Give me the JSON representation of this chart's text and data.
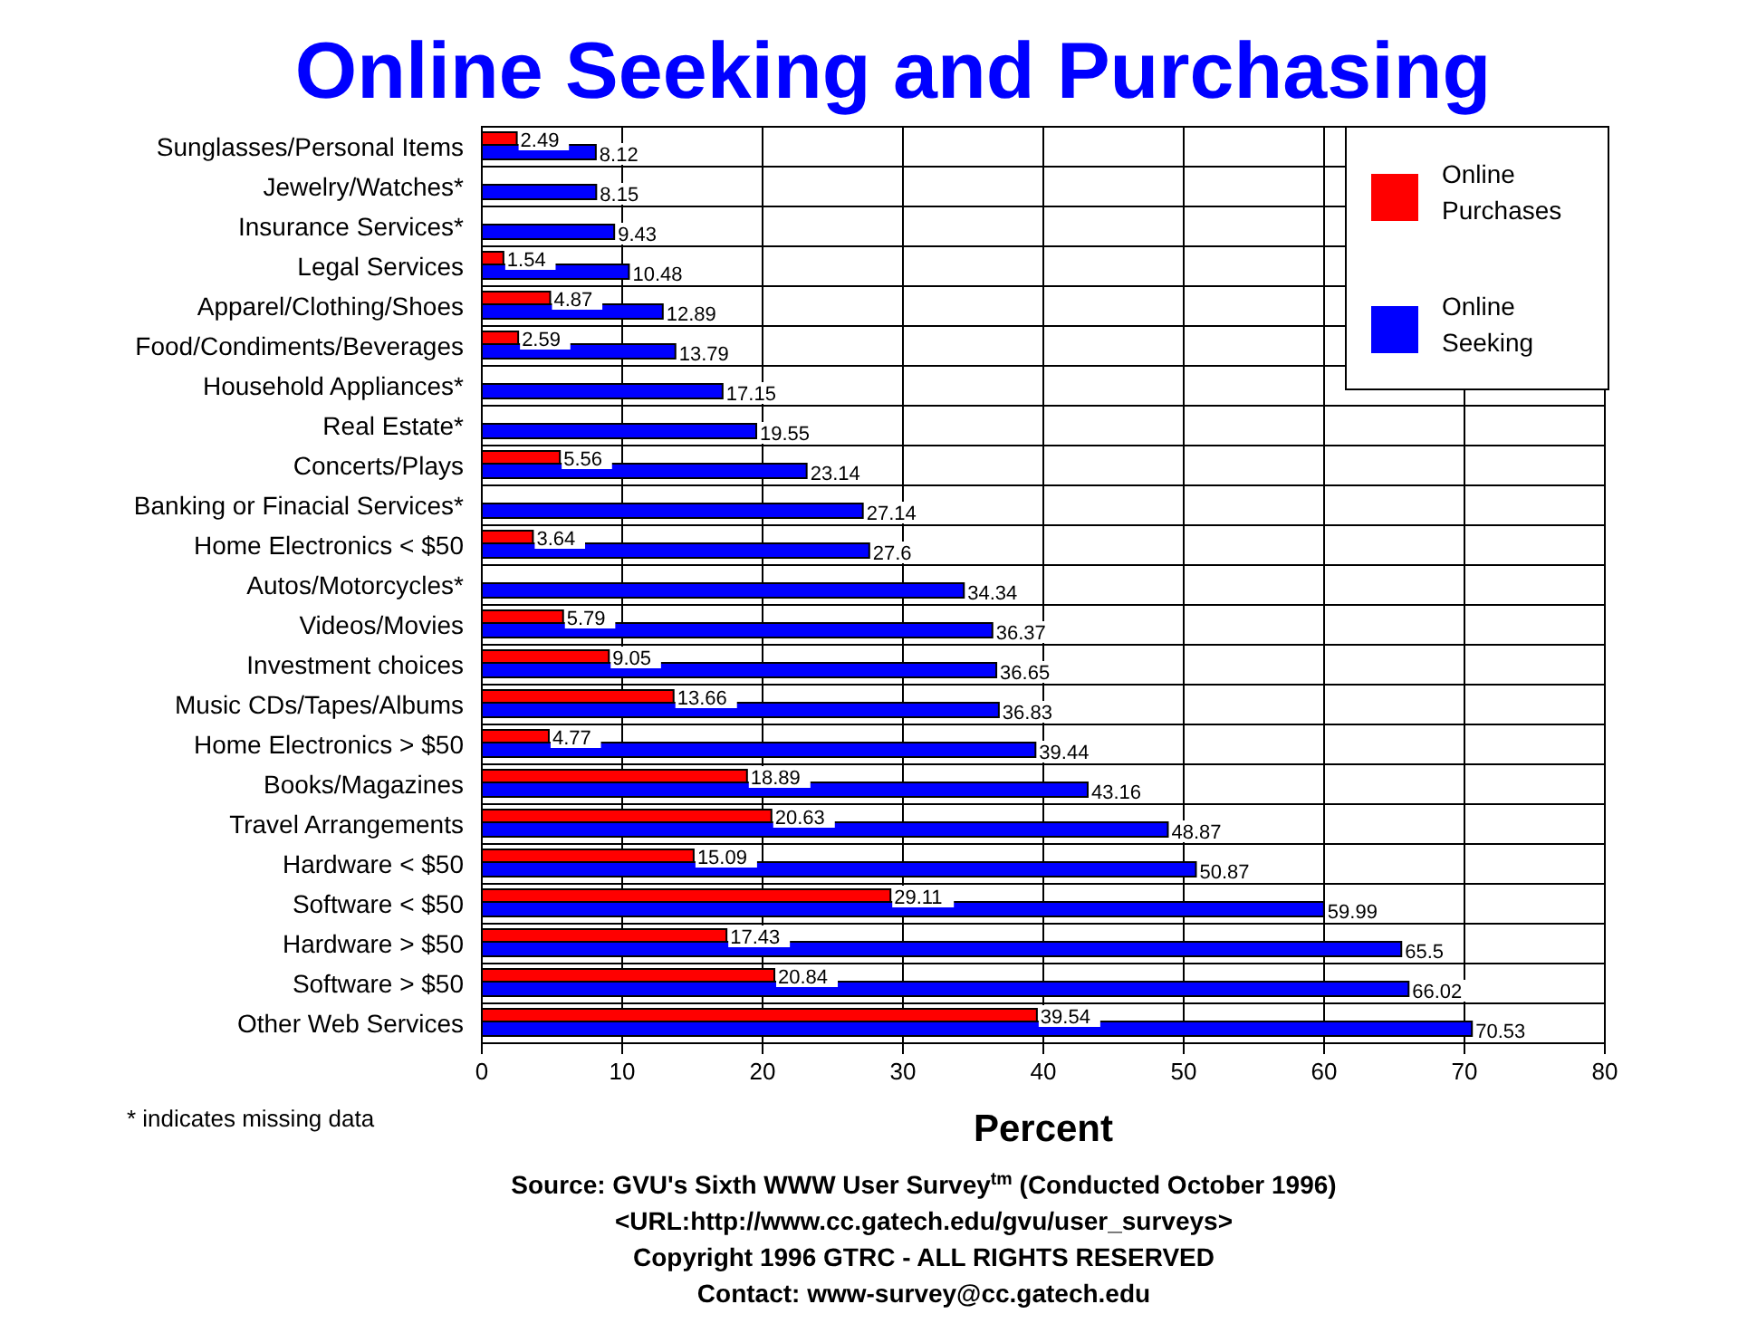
{
  "chart_data": {
    "type": "bar",
    "orientation": "horizontal",
    "title": "Online Seeking and Purchasing",
    "xlabel": "Percent",
    "categories": [
      "Sunglasses/Personal Items",
      "Jewelry/Watches*",
      "Insurance Services*",
      "Legal Services",
      "Apparel/Clothing/Shoes",
      "Food/Condiments/Beverages",
      "Household Appliances*",
      "Real Estate*",
      "Concerts/Plays",
      "Banking or Finacial Services*",
      "Home Electronics < $50",
      "Autos/Motorcycles*",
      "Videos/Movies",
      "Investment choices",
      "Music CDs/Tapes/Albums",
      "Home Electronics > $50",
      "Books/Magazines",
      "Travel Arrangements",
      "Hardware < $50",
      "Software < $50",
      "Hardware > $50",
      "Software > $50",
      "Other Web Services"
    ],
    "series": [
      {
        "name": "Online Purchases",
        "color": "#ff0000",
        "values": [
          2.49,
          null,
          null,
          1.54,
          4.87,
          2.59,
          null,
          null,
          5.56,
          null,
          3.64,
          null,
          5.79,
          9.05,
          13.66,
          4.77,
          18.89,
          20.63,
          15.09,
          29.11,
          17.43,
          20.84,
          39.54
        ]
      },
      {
        "name": "Online Seeking",
        "color": "#0000ff",
        "values": [
          8.12,
          8.15,
          9.43,
          10.48,
          12.89,
          13.79,
          17.15,
          19.55,
          23.14,
          27.14,
          27.6,
          34.34,
          36.37,
          36.65,
          36.83,
          39.44,
          43.16,
          48.87,
          50.87,
          59.99,
          65.5,
          66.02,
          70.53
        ]
      }
    ],
    "xlim": [
      0,
      80
    ],
    "xticks": [
      0,
      10,
      20,
      30,
      40,
      50,
      60,
      70,
      80
    ],
    "grid": true,
    "legend": "top right",
    "data_labels": true,
    "annotations": [
      "* indicates missing data",
      "Source: GVU's Sixth WWW User Survey$^{tm}$  (Conducted October 1996)",
      "<URL:http://www.cc.gatech.edu/gvu/user_surveys>",
      "Copyright 1996 GTRC -  ALL RIGHTS RESERVED",
      "Contact: www-survey@cc.gatech.edu"
    ]
  }
}
